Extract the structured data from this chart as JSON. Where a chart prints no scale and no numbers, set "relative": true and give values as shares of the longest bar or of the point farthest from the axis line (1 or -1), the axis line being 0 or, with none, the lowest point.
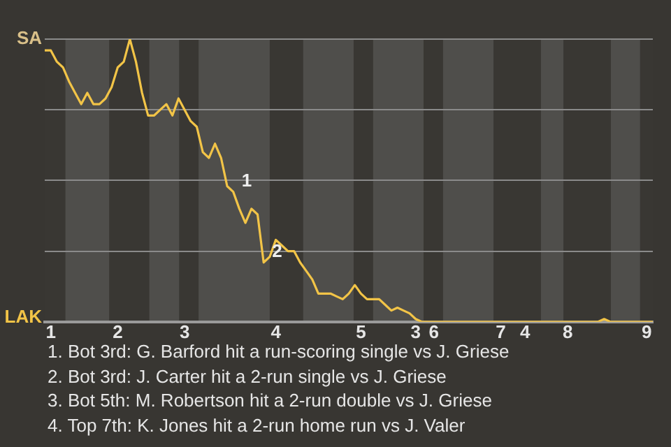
{
  "chart_data": {
    "type": "line",
    "categories": [
      null,
      "1",
      null,
      null,
      null,
      null,
      null,
      null,
      null,
      null,
      null,
      null,
      "2",
      null,
      null,
      null,
      null,
      null,
      null,
      null,
      null,
      null,
      null,
      "3",
      null,
      null,
      null,
      null,
      null,
      null,
      null,
      null,
      null,
      null,
      null,
      null,
      null,
      null,
      "4",
      null,
      null,
      null,
      null,
      null,
      null,
      null,
      null,
      null,
      null,
      null,
      null,
      null,
      "5",
      null,
      null,
      null,
      null,
      null,
      null,
      null,
      null,
      "3",
      null,
      null,
      "6",
      null,
      null,
      null,
      null,
      null,
      null,
      null,
      null,
      null,
      null,
      "7",
      null,
      null,
      null,
      "4",
      null,
      null,
      null,
      null,
      null,
      null,
      "8",
      null,
      null,
      null,
      null,
      null,
      null,
      null,
      null,
      null,
      null,
      null,
      null,
      "9",
      null
    ],
    "relative": true,
    "series": [
      {
        "color": "#f2c447",
        "values": [
          0.96,
          0.96,
          0.92,
          0.9,
          0.85,
          0.81,
          0.77,
          0.81,
          0.77,
          0.77,
          0.79,
          0.83,
          0.9,
          0.92,
          1,
          0.92,
          0.81,
          0.73,
          0.73,
          0.75,
          0.77,
          0.73,
          0.79,
          0.75,
          0.71,
          0.69,
          0.6,
          0.58,
          0.63,
          0.58,
          0.48,
          0.46,
          0.4,
          0.35,
          0.4,
          0.38,
          0.21,
          0.23,
          0.29,
          0.27,
          0.25,
          0.25,
          0.21,
          0.18,
          0.15,
          0.1,
          0.1,
          0.1,
          0.09,
          0.08,
          0.1,
          0.13,
          0.1,
          0.08,
          0.08,
          0.08,
          0.06,
          0.04,
          0.05,
          0.04,
          0.03,
          0.01,
          0,
          0,
          0,
          0,
          0,
          0,
          0,
          0,
          0,
          0,
          0,
          0,
          0,
          0,
          0,
          0,
          0,
          0,
          0,
          0,
          0,
          0,
          0,
          0,
          0,
          0,
          0,
          0,
          0,
          0,
          0.01,
          0,
          0,
          0,
          0,
          0,
          0,
          0,
          0
        ]
      }
    ],
    "grid": "y",
    "marker": "none",
    "annotations": [
      "SA",
      "LAK",
      "1",
      "2",
      "1. Bot 3rd: G. Barford hit a run-scoring single vs J. Griese",
      "2. Bot 3rd: J. Carter hit a 2-run single vs J. Griese",
      "3. Bot 5th: M. Robertson hit a 2-run double vs J. Griese",
      "4. Top 7th: K. Jones hit a 2-run home run vs J. Valer"
    ]
  }
}
